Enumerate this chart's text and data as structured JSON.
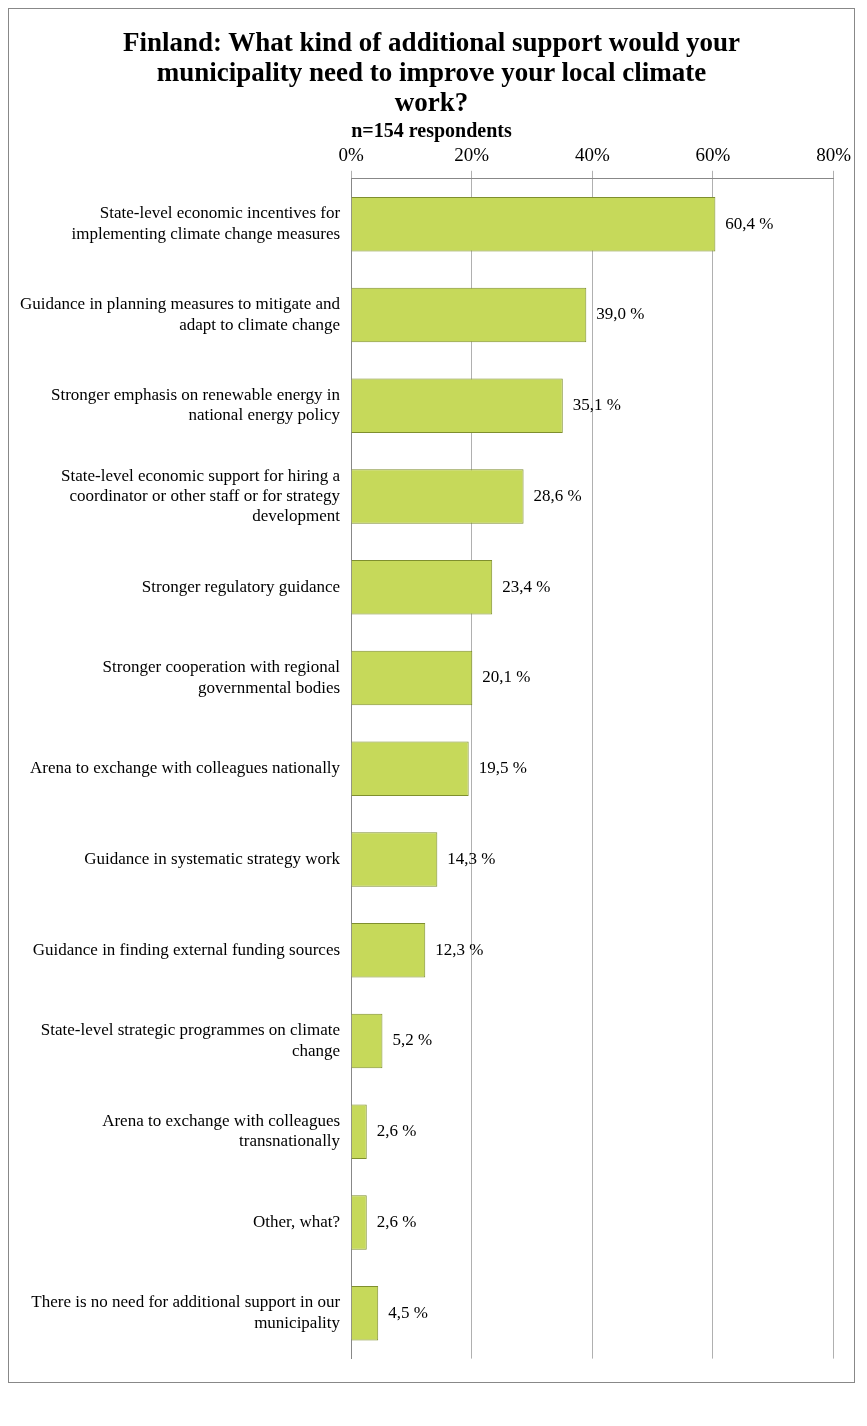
{
  "chart_data": {
    "type": "bar",
    "orientation": "horizontal",
    "title": "Finland: What kind of additional support would your municipality need to improve your local climate work?",
    "subtitle": "n=154 respondents",
    "categories": [
      "State-level economic incentives for implementing climate change measures",
      "Guidance in planning measures to mitigate and adapt to climate change",
      "Stronger emphasis on renewable energy in national energy policy",
      "State-level economic support for hiring a coordinator or other staff or for strategy development",
      "Stronger regulatory guidance",
      "Stronger cooperation with regional governmental bodies",
      "Arena to exchange with colleagues nationally",
      "Guidance in systematic strategy work",
      "Guidance in finding external funding sources",
      "State-level strategic programmes on climate change",
      "Arena to exchange with colleagues transnationally",
      "Other, what?",
      "There is no need for additional support in our municipality"
    ],
    "values": [
      60.4,
      39.0,
      35.1,
      28.6,
      23.4,
      20.1,
      19.5,
      14.3,
      12.3,
      5.2,
      2.6,
      2.6,
      4.5
    ],
    "value_labels": [
      "60,4 %",
      "39,0 %",
      "35,1 %",
      "28,6 %",
      "23,4 %",
      "20,1 %",
      "19,5 %",
      "14,3 %",
      "12,3 %",
      "5,2 %",
      "2,6 %",
      "2,6 %",
      "4,5 %"
    ],
    "color": "#c6d95a",
    "xlim": [
      0,
      80
    ],
    "xticks": [
      {
        "value": 0,
        "label": "0%"
      },
      {
        "value": 20,
        "label": "20%"
      },
      {
        "value": 40,
        "label": "40%"
      },
      {
        "value": 60,
        "label": "60%"
      },
      {
        "value": 80,
        "label": "80%"
      }
    ],
    "grid": "x",
    "legend": false
  }
}
